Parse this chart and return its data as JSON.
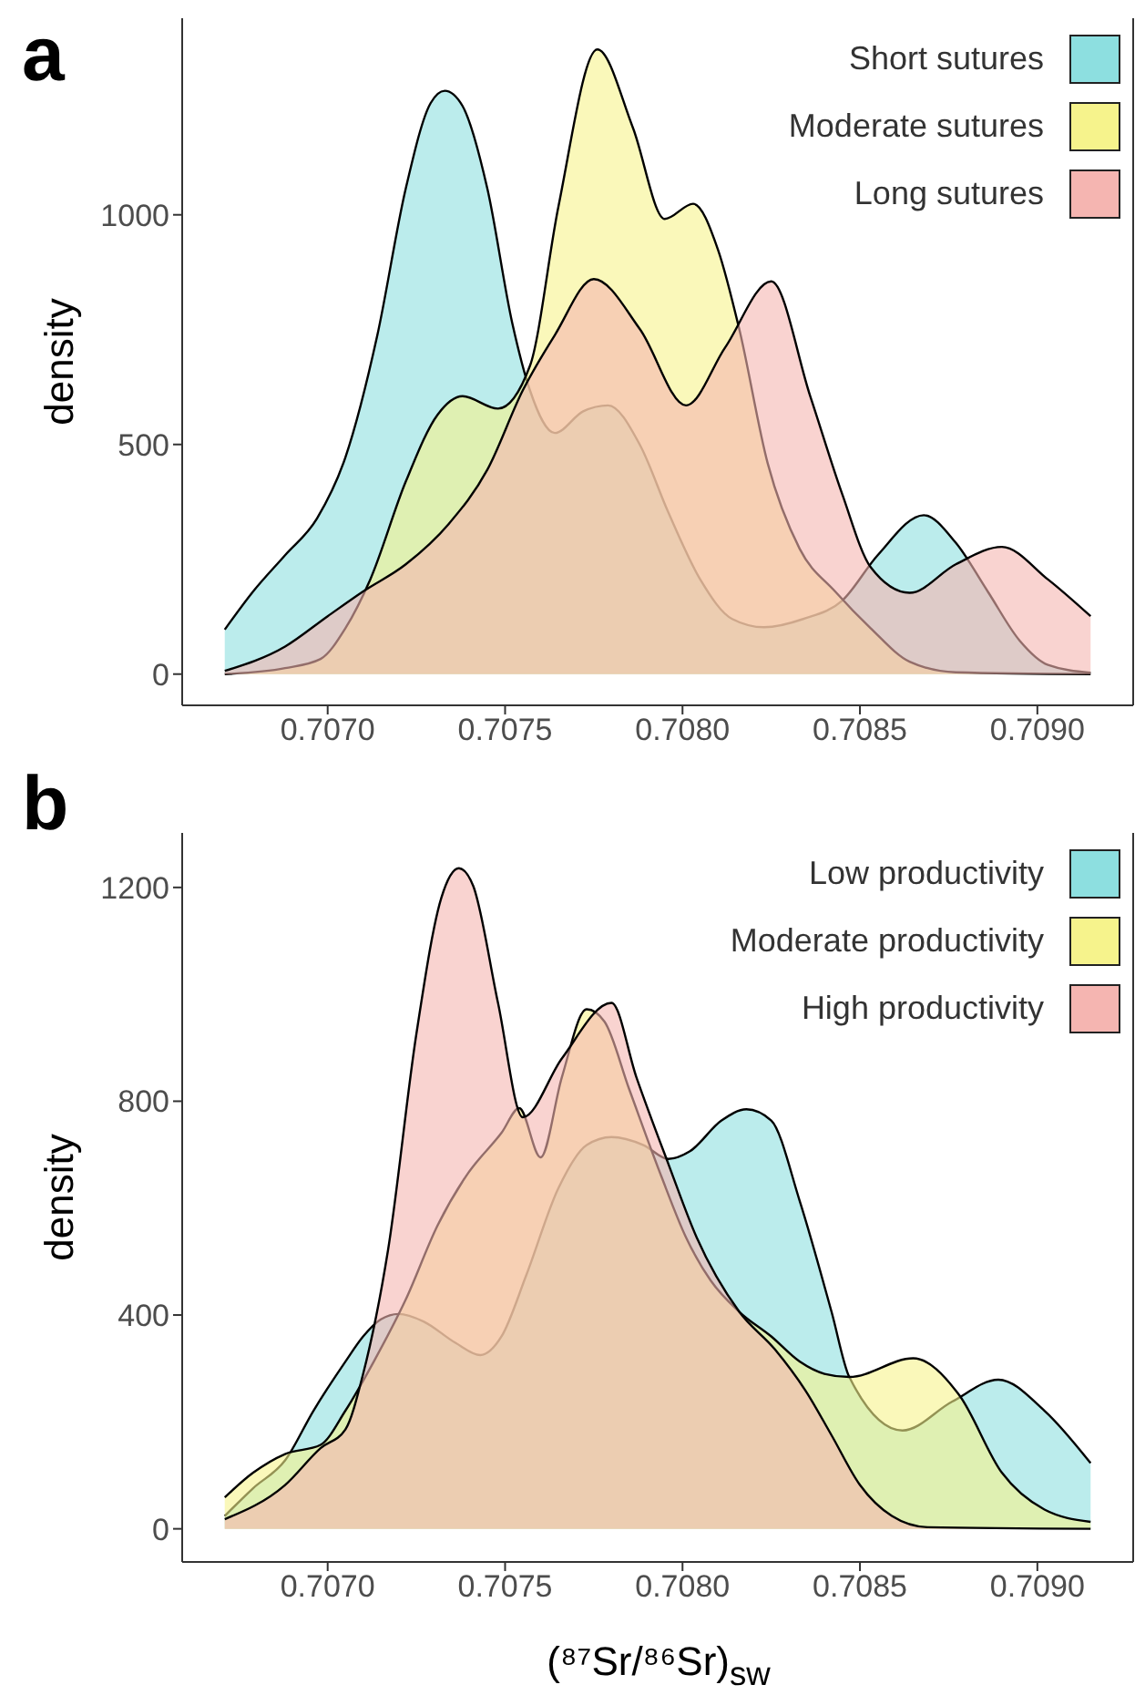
{
  "chart_data": [
    {
      "type": "area",
      "title": "a",
      "ylabel": "density",
      "legend": "top right",
      "xlim": [
        0.70659,
        0.70927
      ],
      "ylim": [
        -68,
        1428
      ],
      "xticks": [
        {
          "value": 0.707,
          "label": "0.7070"
        },
        {
          "value": 0.7075,
          "label": "0.7075"
        },
        {
          "value": 0.708,
          "label": "0.7080"
        },
        {
          "value": 0.7085,
          "label": "0.7085"
        },
        {
          "value": 0.709,
          "label": "0.7090"
        }
      ],
      "yticks": [
        0,
        500,
        1000
      ],
      "series": [
        {
          "name": "Short sutures",
          "color": "#8ddfe0",
          "x": [
            0.70671,
            0.70679,
            0.70688,
            0.70697,
            0.70705,
            0.70714,
            0.70722,
            0.70729,
            0.70733,
            0.70738,
            0.70745,
            0.70752,
            0.70757,
            0.70764,
            0.70772,
            0.70779,
            0.70788,
            0.70796,
            0.70805,
            0.70814,
            0.70823,
            0.70834,
            0.70845,
            0.70855,
            0.70868,
            0.70877,
            0.70886,
            0.70895,
            0.70903,
            0.70915
          ],
          "values": [
            97,
            180,
            259,
            339,
            472,
            738,
            1057,
            1243,
            1270,
            1237,
            1057,
            765,
            618,
            525,
            572,
            585,
            499,
            352,
            206,
            120,
            102,
            120,
            160,
            259,
            346,
            286,
            180,
            73,
            20,
            3
          ]
        },
        {
          "name": "Moderate sutures",
          "color": "#f6f38c",
          "x": [
            0.70671,
            0.70688,
            0.70698,
            0.70705,
            0.70712,
            0.70722,
            0.70731,
            0.70738,
            0.70748,
            0.70757,
            0.70765,
            0.70776,
            0.70786,
            0.70795,
            0.70803,
            0.7081,
            0.70816,
            0.70824,
            0.70833,
            0.70843,
            0.70853,
            0.70864,
            0.70877,
            0.70915
          ],
          "values": [
            0,
            13,
            33,
            100,
            206,
            419,
            565,
            605,
            578,
            671,
            1017,
            1360,
            1190,
            991,
            1024,
            924,
            751,
            459,
            273,
            180,
            100,
            27,
            4,
            0
          ]
        },
        {
          "name": "Long sutures",
          "color": "#f5b5b1",
          "x": [
            0.70671,
            0.70688,
            0.707,
            0.7071,
            0.70722,
            0.70734,
            0.70745,
            0.70755,
            0.70764,
            0.70775,
            0.70788,
            0.70801,
            0.70812,
            0.70825,
            0.70836,
            0.70845,
            0.70853,
            0.70864,
            0.70877,
            0.7089,
            0.70903,
            0.70915
          ],
          "values": [
            7,
            60,
            126,
            180,
            239,
            326,
            445,
            618,
            738,
            860,
            751,
            585,
            711,
            855,
            605,
            392,
            233,
            177,
            239,
            277,
            206,
            126
          ]
        }
      ]
    },
    {
      "type": "area",
      "title": "b",
      "xlabel": "(⁸⁷Sr/⁸⁶Sr)$_{sw}$",
      "ylabel": "density",
      "legend": "top right",
      "xlim": [
        0.70659,
        0.70927
      ],
      "ylim": [
        -62,
        1302
      ],
      "xticks": [
        {
          "value": 0.707,
          "label": "0.7070"
        },
        {
          "value": 0.7075,
          "label": "0.7075"
        },
        {
          "value": 0.708,
          "label": "0.7080"
        },
        {
          "value": 0.7085,
          "label": "0.7085"
        },
        {
          "value": 0.709,
          "label": "0.7090"
        }
      ],
      "yticks": [
        0,
        400,
        800,
        1200
      ],
      "series": [
        {
          "name": "Low productivity",
          "color": "#8ddfe0",
          "x": [
            0.70671,
            0.70679,
            0.70688,
            0.70696,
            0.70705,
            0.7071,
            0.70715,
            0.7072,
            0.70727,
            0.70736,
            0.70743,
            0.70749,
            0.70756,
            0.70765,
            0.70773,
            0.7078,
            0.70789,
            0.70796,
            0.70802,
            0.70811,
            0.70818,
            0.70825,
            0.70833,
            0.70842,
            0.70847,
            0.70862,
            0.70876,
            0.70889,
            0.70902,
            0.70915
          ],
          "values": [
            24,
            76,
            128,
            221,
            313,
            360,
            392,
            402,
            388,
            348,
            325,
            360,
            475,
            637,
            718,
            733,
            718,
            692,
            706,
            764,
            785,
            764,
            614,
            406,
            284,
            184,
            238,
            279,
            221,
            123
          ]
        },
        {
          "name": "Moderate productivity",
          "color": "#f6f38c",
          "x": [
            0.70671,
            0.70679,
            0.70688,
            0.70698,
            0.70705,
            0.70713,
            0.70722,
            0.70731,
            0.70739,
            0.70749,
            0.70754,
            0.7076,
            0.70766,
            0.70773,
            0.70778,
            0.70785,
            0.70794,
            0.70801,
            0.70808,
            0.70816,
            0.70825,
            0.70833,
            0.7084,
            0.70847,
            0.70865,
            0.70878,
            0.7089,
            0.70902,
            0.70915
          ],
          "values": [
            59,
            105,
            140,
            157,
            221,
            313,
            429,
            568,
            660,
            741,
            787,
            695,
            845,
            972,
            949,
            822,
            660,
            545,
            464,
            406,
            360,
            313,
            290,
            284,
            319,
            250,
            105,
            36,
            13
          ]
        },
        {
          "name": "High productivity",
          "color": "#f5b5b1",
          "x": [
            0.70671,
            0.70688,
            0.70698,
            0.70705,
            0.7071,
            0.70717,
            0.70725,
            0.70732,
            0.70737,
            0.70741,
            0.70748,
            0.70755,
            0.70766,
            0.7078,
            0.70787,
            0.70796,
            0.70804,
            0.70816,
            0.70826,
            0.70835,
            0.70842,
            0.7085,
            0.70859,
            0.70869,
            0.70915
          ],
          "values": [
            18,
            82,
            151,
            186,
            290,
            521,
            926,
            1180,
            1236,
            1203,
            984,
            770,
            880,
            984,
            845,
            683,
            545,
            406,
            336,
            255,
            175,
            82,
            24,
            3,
            0
          ]
        }
      ]
    }
  ]
}
